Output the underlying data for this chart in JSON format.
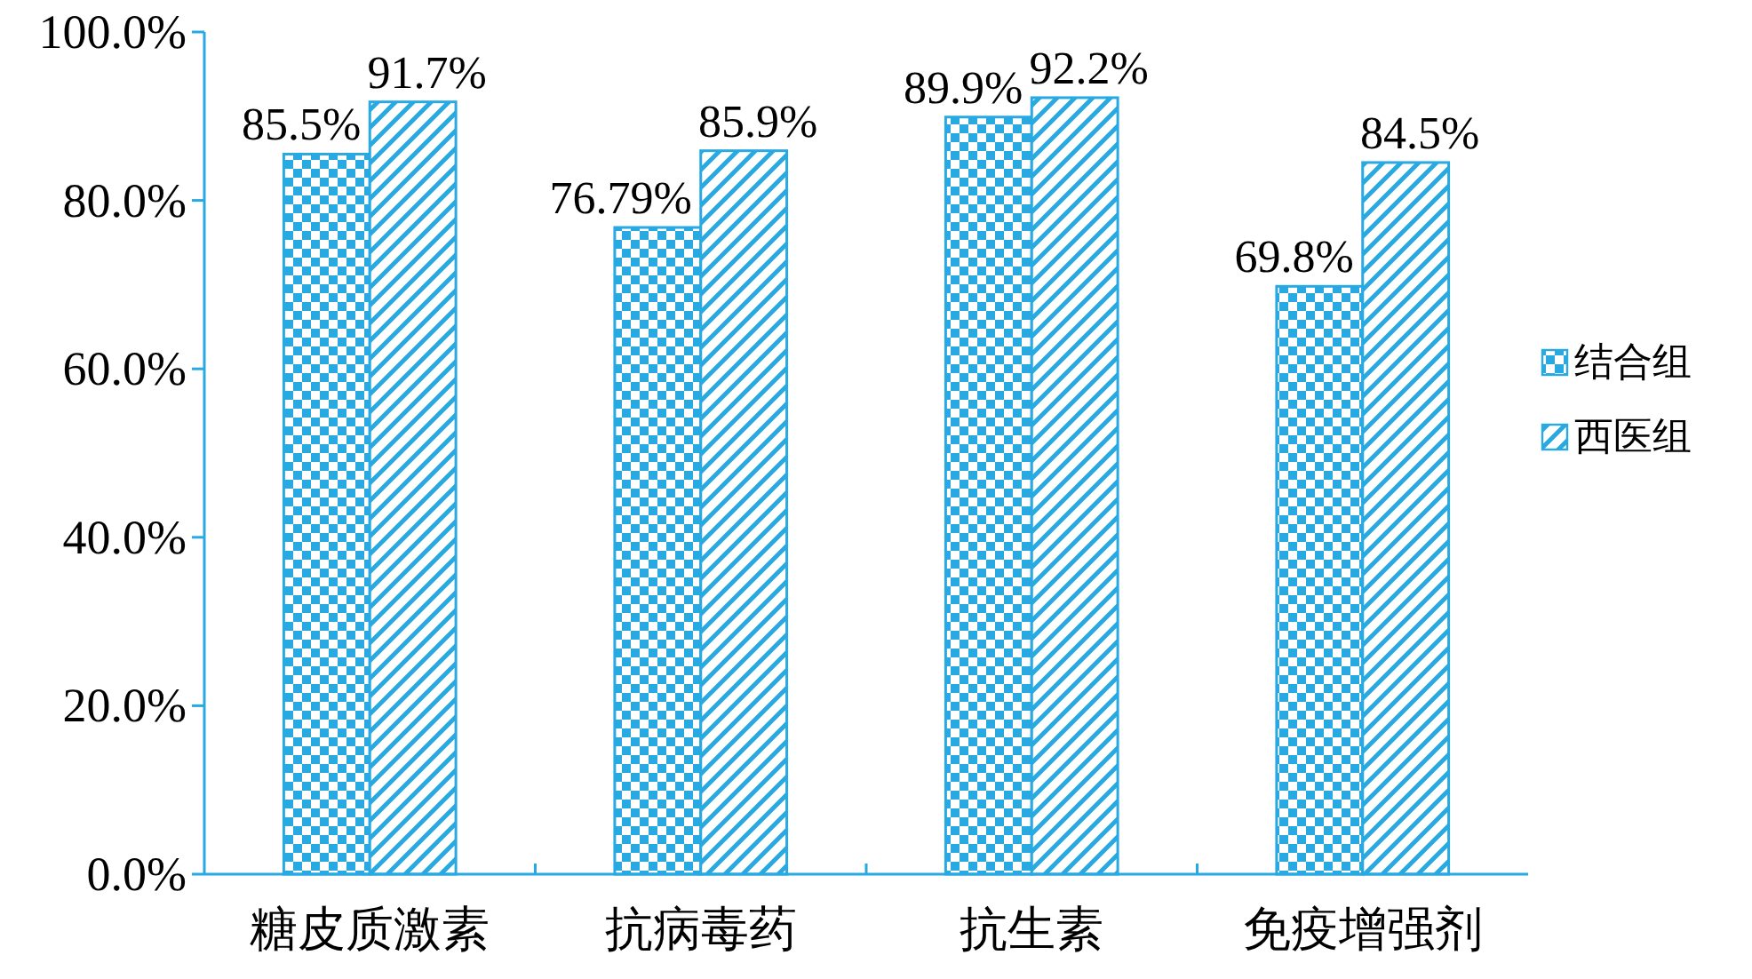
{
  "chart_data": {
    "type": "bar",
    "categories": [
      "糖皮质激素",
      "抗病毒药",
      "抗生素",
      "免疫增强剂"
    ],
    "series": [
      {
        "name": "结合组",
        "color": "#29a9e1",
        "values": [
          85.5,
          76.79,
          89.9,
          69.8
        ],
        "value_labels": [
          "85.5%",
          "76.79%",
          "89.9%",
          "69.8%"
        ]
      },
      {
        "name": "西医组",
        "color": "#29a9e1",
        "values": [
          91.7,
          85.9,
          92.2,
          84.5
        ],
        "value_labels": [
          "91.7%",
          "85.9%",
          "92.2%",
          "84.5%"
        ]
      }
    ],
    "ylim": [
      0,
      100
    ],
    "yticks": [
      {
        "value": 0,
        "label": "0.0%"
      },
      {
        "value": 20,
        "label": "20.0%"
      },
      {
        "value": 40,
        "label": "40.0%"
      },
      {
        "value": 60,
        "label": "60.0%"
      },
      {
        "value": 80,
        "label": "80.0%"
      },
      {
        "value": 100,
        "label": "100.0%"
      }
    ],
    "legend": "right"
  }
}
